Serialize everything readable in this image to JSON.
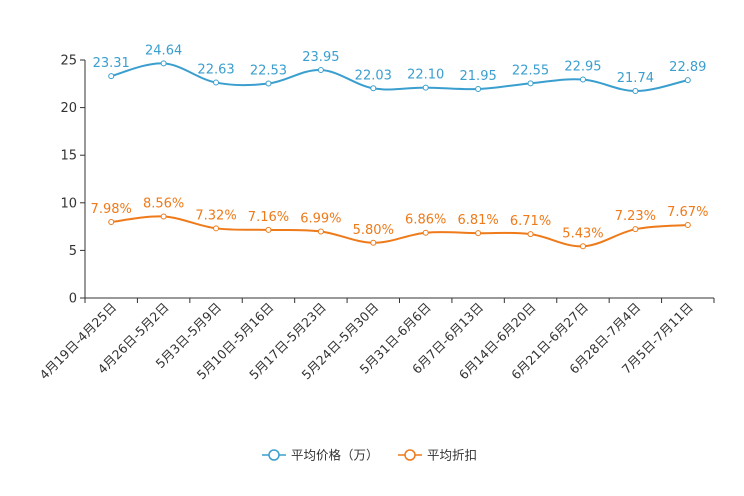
{
  "chart_data": {
    "type": "line",
    "title": "",
    "xlabel": "",
    "ylabel": "",
    "ylim": [
      0,
      25
    ],
    "yticks": [
      0,
      5,
      10,
      15,
      20,
      25
    ],
    "grid": false,
    "legend_position": "bottom-center",
    "categories": [
      "4月19日-4月25日",
      "4月26日-5月2日",
      "5月3日-5月9日",
      "5月10日-5月16日",
      "5月17日-5月23日",
      "5月24日-5月30日",
      "5月31日-6月6日",
      "6月7日-6月13日",
      "6月14日-6月20日",
      "6月21日-6月27日",
      "6月28日-7月4日",
      "7月5日-7月11日"
    ],
    "series": [
      {
        "name": "平均价格（万）",
        "color": "#3a9fcf",
        "values": [
          23.31,
          24.64,
          22.63,
          22.53,
          23.95,
          22.03,
          22.1,
          21.95,
          22.55,
          22.95,
          21.74,
          22.89
        ],
        "labels": [
          "23.31",
          "24.64",
          "22.63",
          "22.53",
          "23.95",
          "22.03",
          "22.10",
          "21.95",
          "22.55",
          "22.95",
          "21.74",
          "22.89"
        ]
      },
      {
        "name": "平均折扣",
        "color": "#ee7a1a",
        "values": [
          7.98,
          8.56,
          7.32,
          7.16,
          6.99,
          5.8,
          6.86,
          6.81,
          6.71,
          5.43,
          7.23,
          7.67
        ],
        "labels": [
          "7.98%",
          "8.56%",
          "7.32%",
          "7.16%",
          "6.99%",
          "5.80%",
          "6.86%",
          "6.81%",
          "6.71%",
          "5.43%",
          "7.23%",
          "7.67%"
        ]
      }
    ]
  }
}
